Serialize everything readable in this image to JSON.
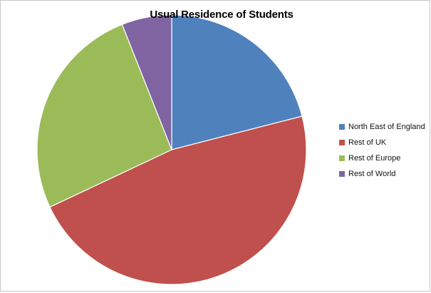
{
  "chart_data": {
    "type": "pie",
    "title": "Usual Residence of Students",
    "categories": [
      "North East of England",
      "Rest of UK",
      "Rest of Europe",
      "Rest of World"
    ],
    "values": [
      21,
      47,
      26,
      6
    ],
    "colors": [
      "#4f81bd",
      "#c0504d",
      "#9bbb59",
      "#8064a2"
    ],
    "legend_position": "right",
    "start_angle": "top",
    "direction": "clockwise"
  }
}
